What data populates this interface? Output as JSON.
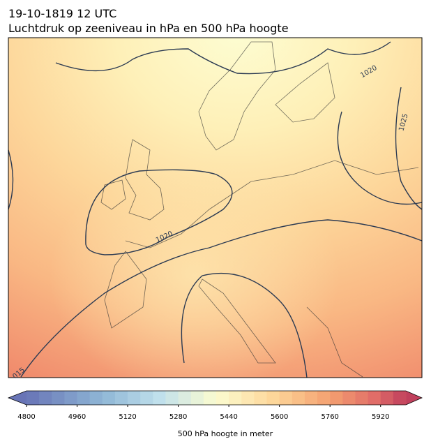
{
  "header": {
    "date": "19-10-1819 12 UTC",
    "title": "Luchtdruk op zeeniveau in hPa en 500 hPa hoogte"
  },
  "map": {
    "contour_labels": [
      "1020",
      "1025",
      "1020",
      "015"
    ]
  },
  "colorbar": {
    "xlim": [
      4800,
      6000
    ],
    "ticks": [
      4800,
      4960,
      5120,
      5280,
      5440,
      5600,
      5760,
      5920
    ],
    "label": "500 hPa hoogte in meter"
  }
}
